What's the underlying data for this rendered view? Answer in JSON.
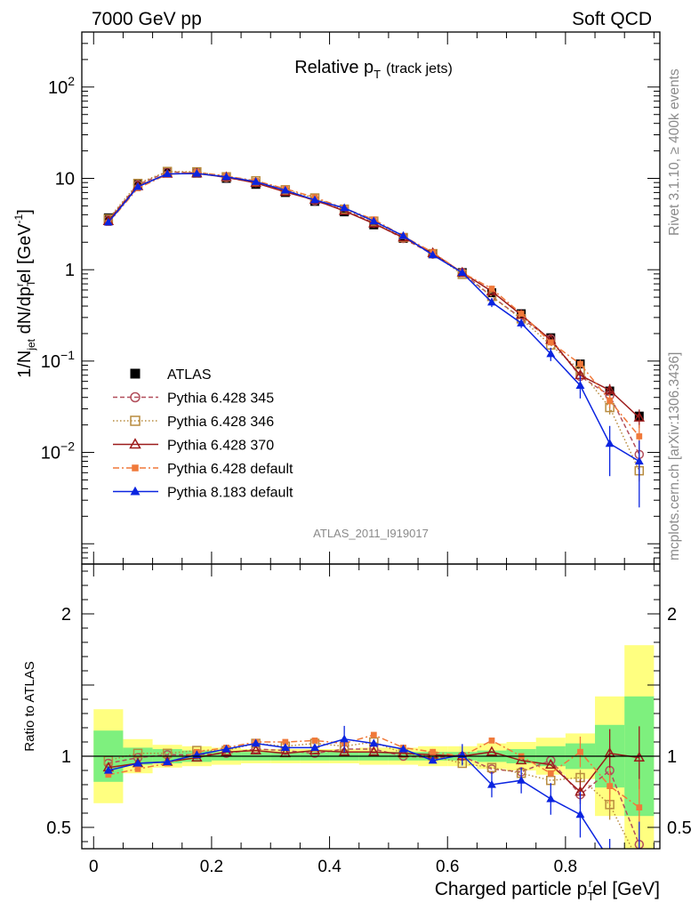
{
  "header": {
    "left": "7000 GeV pp",
    "right": "Soft QCD"
  },
  "side_labels": {
    "top": "Rivet 3.1.10, ≥ 400k events",
    "bottom": "mcplots.cern.ch [arXiv:1306.3436]"
  },
  "plot_title": {
    "main": "Relative p",
    "sub": "T",
    "extra": "(track jets)"
  },
  "analysis_id": "ATLAS_2011_I919017",
  "y_axis_label": {
    "p1": "1/N",
    "p2": "jet",
    "p3": " dN/dp",
    "p4": "T",
    "p5": "r",
    "p6": "el [GeV",
    "p7": "-1",
    "p8": "]"
  },
  "x_axis_label": {
    "p1": "Charged particle p",
    "p2": "T",
    "p3": "r",
    "p4": "el [GeV]"
  },
  "ratio_axis_label": "Ratio to ATLAS",
  "main_y_ticks": [
    {
      "v": 100,
      "base": "10",
      "exp": "2"
    },
    {
      "v": 10,
      "base": "10",
      "exp": ""
    },
    {
      "v": 1,
      "base": "1",
      "exp": ""
    },
    {
      "v": 0.1,
      "base": "10",
      "exp": "−1"
    },
    {
      "v": 0.01,
      "base": "10",
      "exp": "−2"
    }
  ],
  "ratio_y_ticks": [
    {
      "v": 2,
      "label": "2"
    },
    {
      "v": 1,
      "label": "1"
    },
    {
      "v": 0.5,
      "label": "0.5"
    }
  ],
  "x_ticks": [
    {
      "v": 0,
      "label": "0"
    },
    {
      "v": 0.2,
      "label": "0.2"
    },
    {
      "v": 0.4,
      "label": "0.4"
    },
    {
      "v": 0.6,
      "label": "0.6"
    },
    {
      "v": 0.8,
      "label": "0.8"
    }
  ],
  "legend": [
    {
      "label": "ATLAS"
    },
    {
      "label": "Pythia 6.428 345"
    },
    {
      "label": "Pythia 6.428 346"
    },
    {
      "label": "Pythia 6.428 370"
    },
    {
      "label": "Pythia 6.428 default"
    },
    {
      "label": "Pythia 8.183 default"
    }
  ],
  "chart_data": {
    "type": "line",
    "title": "Relative pT (track jets)",
    "xlabel": "Charged particle pTrel [GeV]",
    "ylabel": "1/Njet dN/dpTrel [GeV^-1]",
    "yscale": "log",
    "xlim": [
      -0.02,
      0.96
    ],
    "ylim": [
      0.0006,
      400
    ],
    "ratio_ylim": [
      0.35,
      2.35
    ],
    "x": [
      0.025,
      0.075,
      0.125,
      0.175,
      0.225,
      0.275,
      0.325,
      0.375,
      0.425,
      0.475,
      0.525,
      0.575,
      0.625,
      0.675,
      0.725,
      0.775,
      0.825,
      0.875,
      0.925
    ],
    "series": [
      {
        "name": "ATLAS",
        "color": "#000000",
        "marker": "square-filled",
        "dash": "",
        "values": [
          3.7,
          8.6,
          11.7,
          11.4,
          10.0,
          8.6,
          7.0,
          5.6,
          4.3,
          3.1,
          2.2,
          1.5,
          0.93,
          0.56,
          0.33,
          0.18,
          0.093,
          0.047,
          0.025
        ],
        "band_inner": [
          0.18,
          0.06,
          0.05,
          0.04,
          0.03,
          0.03,
          0.03,
          0.03,
          0.03,
          0.03,
          0.03,
          0.03,
          0.03,
          0.04,
          0.05,
          0.07,
          0.09,
          0.22,
          0.42
        ],
        "band_outer": [
          0.33,
          0.12,
          0.08,
          0.07,
          0.06,
          0.05,
          0.05,
          0.05,
          0.05,
          0.06,
          0.06,
          0.07,
          0.07,
          0.09,
          0.1,
          0.13,
          0.16,
          0.42,
          0.78
        ]
      },
      {
        "name": "Pythia 6.428 345",
        "color": "#b24e5b",
        "marker": "circle-open",
        "dash": "5,3",
        "values": [
          3.5,
          8.5,
          11.8,
          11.5,
          10.2,
          9.0,
          7.3,
          5.7,
          4.5,
          3.25,
          2.2,
          1.48,
          0.93,
          0.51,
          0.295,
          0.175,
          0.068,
          0.042,
          0.0095
        ],
        "ratio": [
          0.95,
          0.99,
          1.01,
          1.01,
          1.02,
          1.05,
          1.04,
          1.02,
          1.05,
          1.05,
          1.0,
          0.99,
          1.0,
          0.91,
          0.89,
          0.97,
          0.73,
          0.9,
          0.38
        ],
        "err": [
          0,
          0,
          0,
          0,
          0,
          0,
          0,
          0,
          0,
          0,
          0,
          0,
          0,
          0,
          0,
          0,
          0.004,
          0.008,
          0.002
        ]
      },
      {
        "name": "Pythia 6.428 346",
        "color": "#b88b3e",
        "marker": "square-open",
        "dash": "1.5,2.5",
        "values": [
          3.6,
          8.8,
          11.9,
          11.8,
          10.4,
          9.4,
          7.5,
          6.1,
          4.6,
          3.4,
          2.25,
          1.5,
          0.89,
          0.51,
          0.29,
          0.15,
          0.079,
          0.031,
          0.0063
        ],
        "ratio": [
          0.97,
          1.02,
          1.02,
          1.04,
          1.04,
          1.09,
          1.07,
          1.09,
          1.07,
          1.1,
          1.02,
          1.0,
          0.95,
          0.92,
          0.88,
          0.83,
          0.85,
          0.66,
          0.25
        ],
        "err": [
          0,
          0,
          0,
          0,
          0,
          0,
          0,
          0,
          0,
          0,
          0,
          0,
          0,
          0,
          0,
          0,
          0.005,
          0.005,
          0.0015
        ]
      },
      {
        "name": "Pythia 6.428 370",
        "color": "#9c1b1b",
        "marker": "triangle-open",
        "dash": "",
        "values": [
          3.4,
          8.2,
          11.2,
          11.3,
          10.3,
          8.9,
          7.1,
          5.8,
          4.4,
          3.2,
          2.25,
          1.52,
          0.93,
          0.58,
          0.32,
          0.17,
          0.07,
          0.048,
          0.024
        ],
        "ratio": [
          0.92,
          0.95,
          0.96,
          0.99,
          1.03,
          1.04,
          1.02,
          1.04,
          1.03,
          1.03,
          1.02,
          1.01,
          1.0,
          1.03,
          0.97,
          0.94,
          0.75,
          1.02,
          0.99
        ],
        "err": [
          0,
          0,
          0,
          0,
          0,
          0,
          0,
          0,
          0,
          0,
          0,
          0,
          0,
          0,
          0,
          0,
          0.008,
          0.008,
          0.0055
        ]
      },
      {
        "name": "Pythia 6.428 default",
        "color": "#f0793a",
        "marker": "square-filled-small",
        "dash": "7,3,2,3",
        "values": [
          3.25,
          7.8,
          11.1,
          11.7,
          10.6,
          9.4,
          7.7,
          6.2,
          4.7,
          3.55,
          2.33,
          1.55,
          0.93,
          0.62,
          0.33,
          0.16,
          0.093,
          0.037,
          0.015
        ],
        "ratio": [
          0.87,
          0.91,
          0.95,
          1.03,
          1.06,
          1.1,
          1.1,
          1.11,
          1.09,
          1.15,
          1.06,
          1.03,
          1.0,
          1.11,
          1.0,
          0.88,
          1.03,
          0.79,
          0.64
        ],
        "err": [
          0,
          0,
          0,
          0,
          0,
          0,
          0,
          0,
          0,
          0,
          0,
          0,
          0,
          0,
          0,
          0,
          0.01,
          0.006,
          0.005
        ]
      },
      {
        "name": "Pythia 8.183 default",
        "color": "#0b24e0",
        "marker": "triangle-filled",
        "dash": "",
        "values": [
          3.3,
          8.1,
          11.2,
          11.3,
          10.4,
          9.2,
          7.4,
          5.8,
          4.75,
          3.4,
          2.35,
          1.45,
          0.93,
          0.44,
          0.26,
          0.12,
          0.054,
          0.0125,
          0.008
        ],
        "ratio": [
          0.9,
          0.95,
          0.96,
          1.01,
          1.05,
          1.09,
          1.06,
          1.06,
          1.12,
          1.09,
          1.05,
          0.97,
          1.01,
          0.8,
          0.83,
          0.7,
          0.59,
          0.27,
          0.32
        ],
        "err": [
          0,
          0,
          0,
          0,
          0,
          0,
          0,
          0,
          0.4,
          0,
          0,
          0,
          0.07,
          0.05,
          0.03,
          0.02,
          0.015,
          0.007,
          0.0055
        ]
      }
    ]
  }
}
